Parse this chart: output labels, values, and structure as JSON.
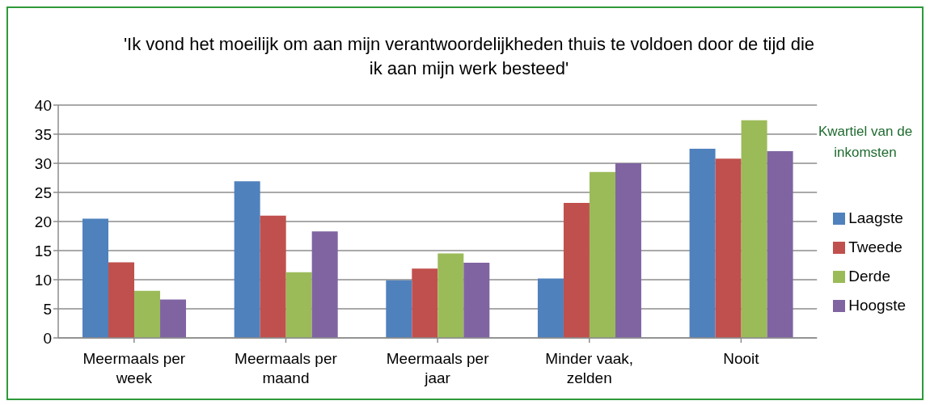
{
  "chart_data": {
    "type": "bar",
    "title": "'Ik vond het moeilijk om aan mijn verantwoordelijkheden thuis te voldoen door de tijd die ik aan mijn werk besteed'",
    "categories": [
      "Meermaals per week",
      "Meermaals per maand",
      "Meermaals per jaar",
      "Minder vaak, zelden",
      "Nooit"
    ],
    "series": [
      {
        "name": "Laagste",
        "color": "#4f81bd",
        "values": [
          20.5,
          26.9,
          9.9,
          10.2,
          32.5
        ]
      },
      {
        "name": "Tweede",
        "color": "#c0504d",
        "values": [
          13.0,
          21.0,
          11.9,
          23.2,
          30.8
        ]
      },
      {
        "name": "Derde",
        "color": "#9bbb59",
        "values": [
          8.1,
          11.3,
          14.5,
          28.5,
          37.4
        ]
      },
      {
        "name": "Hoogste",
        "color": "#8064a2",
        "values": [
          6.6,
          18.3,
          12.9,
          30.0,
          32.1
        ]
      }
    ],
    "legend_title": "Kwartiel van de inkomsten",
    "ylim": [
      0,
      40
    ],
    "yticks": [
      0,
      5,
      10,
      15,
      20,
      25,
      30,
      35,
      40
    ],
    "grid": "y",
    "legend": "right"
  }
}
